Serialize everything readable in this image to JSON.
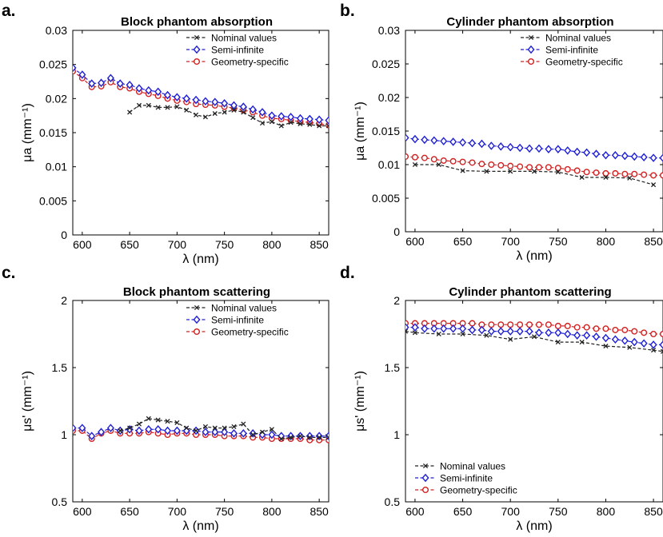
{
  "legend_labels": {
    "nominal": "Nominal values",
    "semi": "Semi-infinite",
    "geometry": "Geometry-specific"
  },
  "colors": {
    "nominal": "#222222",
    "semi": "#1f1fd6",
    "geometry": "#d12121"
  },
  "xlabel": "λ (nm)",
  "chart_data": [
    {
      "id": "a",
      "letter": "a.",
      "type": "line",
      "title": "Block phantom absorption",
      "ylabel": "μa (mm⁻¹)",
      "xlim": [
        590,
        860
      ],
      "ylim": [
        0,
        0.03
      ],
      "xticks": [
        600,
        650,
        700,
        750,
        800,
        850
      ],
      "xtick_labels": [
        "600",
        "650",
        "700",
        "750",
        "800",
        "850"
      ],
      "yticks": [
        0,
        0.005,
        0.01,
        0.015,
        0.02,
        0.025,
        0.03
      ],
      "ytick_labels": [
        "0",
        "0.005",
        "0.01",
        "0.015",
        "0.02",
        "0.025",
        "0.03"
      ],
      "legend_position": "top-right",
      "series": [
        {
          "key": "nominal",
          "name": "Nominal values",
          "marker": "x",
          "x": [
            650,
            660,
            670,
            680,
            690,
            700,
            710,
            720,
            730,
            740,
            750,
            760,
            770,
            780,
            790,
            800,
            810,
            820,
            830,
            840,
            850,
            860
          ],
          "y": [
            0.018,
            0.019,
            0.019,
            0.0187,
            0.0187,
            0.0188,
            0.0183,
            0.0176,
            0.0173,
            0.0178,
            0.018,
            0.0183,
            0.018,
            0.0172,
            0.0164,
            0.0166,
            0.016,
            0.0165,
            0.0163,
            0.0162,
            0.016,
            0.016
          ]
        },
        {
          "key": "semi",
          "name": "Semi-infinite",
          "marker": "diamond",
          "x": [
            590,
            600,
            610,
            620,
            630,
            640,
            650,
            660,
            670,
            680,
            690,
            700,
            710,
            720,
            730,
            740,
            750,
            760,
            770,
            780,
            790,
            800,
            810,
            820,
            830,
            840,
            850,
            860
          ],
          "y": [
            0.0245,
            0.0235,
            0.0222,
            0.0223,
            0.023,
            0.0222,
            0.022,
            0.0215,
            0.0212,
            0.021,
            0.0205,
            0.0202,
            0.02,
            0.0198,
            0.0196,
            0.0195,
            0.0193,
            0.019,
            0.0188,
            0.0184,
            0.018,
            0.0175,
            0.0174,
            0.0173,
            0.0171,
            0.017,
            0.0169,
            0.0168
          ]
        },
        {
          "key": "geometry",
          "name": "Geometry-specific",
          "marker": "circle",
          "x": [
            590,
            600,
            610,
            620,
            630,
            640,
            650,
            660,
            670,
            680,
            690,
            700,
            710,
            720,
            730,
            740,
            750,
            760,
            770,
            780,
            790,
            800,
            810,
            820,
            830,
            840,
            850,
            860
          ],
          "y": [
            0.024,
            0.023,
            0.0217,
            0.0218,
            0.0224,
            0.0217,
            0.0215,
            0.021,
            0.0207,
            0.0204,
            0.02,
            0.0197,
            0.0195,
            0.0192,
            0.0191,
            0.019,
            0.0188,
            0.0186,
            0.0183,
            0.018,
            0.0175,
            0.0171,
            0.017,
            0.0168,
            0.0166,
            0.0165,
            0.0163,
            0.0161
          ]
        }
      ]
    },
    {
      "id": "b",
      "letter": "b.",
      "type": "line",
      "title": "Cylinder phantom absorption",
      "ylabel": "μa (mm⁻¹)",
      "xlim": [
        590,
        860
      ],
      "ylim": [
        0,
        0.03
      ],
      "xticks": [
        600,
        650,
        700,
        750,
        800,
        850
      ],
      "xtick_labels": [
        "600",
        "650",
        "700",
        "750",
        "800",
        "850"
      ],
      "yticks": [
        0,
        0.005,
        0.01,
        0.015,
        0.02,
        0.025,
        0.03
      ],
      "ytick_labels": [
        "0",
        "0.005",
        "0.01",
        "0.015",
        "0.02",
        "0.025",
        "0.03"
      ],
      "legend_position": "top-right",
      "series": [
        {
          "key": "nominal",
          "name": "Nominal values",
          "marker": "x",
          "x": [
            600,
            625,
            650,
            675,
            700,
            725,
            750,
            775,
            800,
            825,
            850
          ],
          "y": [
            0.01,
            0.01,
            0.0091,
            0.009,
            0.009,
            0.009,
            0.0089,
            0.0081,
            0.0081,
            0.008,
            0.007
          ]
        },
        {
          "key": "semi",
          "name": "Semi-infinite",
          "marker": "diamond",
          "x": [
            590,
            600,
            610,
            620,
            630,
            640,
            650,
            660,
            670,
            680,
            690,
            700,
            710,
            720,
            730,
            740,
            750,
            760,
            770,
            780,
            790,
            800,
            810,
            820,
            830,
            840,
            850,
            860
          ],
          "y": [
            0.014,
            0.0138,
            0.0137,
            0.0136,
            0.0135,
            0.0134,
            0.0133,
            0.0132,
            0.0131,
            0.0128,
            0.0127,
            0.0126,
            0.0125,
            0.0124,
            0.0124,
            0.0123,
            0.0123,
            0.0121,
            0.0119,
            0.0118,
            0.0116,
            0.0114,
            0.0114,
            0.0113,
            0.0112,
            0.0111,
            0.011,
            0.011
          ]
        },
        {
          "key": "geometry",
          "name": "Geometry-specific",
          "marker": "circle",
          "x": [
            590,
            600,
            610,
            620,
            630,
            640,
            650,
            660,
            670,
            680,
            690,
            700,
            710,
            720,
            730,
            740,
            750,
            760,
            770,
            780,
            790,
            800,
            810,
            820,
            830,
            840,
            850,
            860
          ],
          "y": [
            0.0112,
            0.0111,
            0.011,
            0.0108,
            0.0106,
            0.0105,
            0.0104,
            0.0103,
            0.0101,
            0.01,
            0.0099,
            0.0098,
            0.0097,
            0.0096,
            0.0096,
            0.0096,
            0.0095,
            0.0093,
            0.0091,
            0.0089,
            0.0088,
            0.0087,
            0.0087,
            0.0086,
            0.0086,
            0.0085,
            0.0084,
            0.0084
          ]
        }
      ]
    },
    {
      "id": "c",
      "letter": "c.",
      "type": "line",
      "title": "Block phantom scattering",
      "ylabel": "μs' (mm⁻¹)",
      "xlim": [
        590,
        860
      ],
      "ylim": [
        0.5,
        2
      ],
      "xticks": [
        600,
        650,
        700,
        750,
        800,
        850
      ],
      "xtick_labels": [
        "600",
        "650",
        "700",
        "750",
        "800",
        "850"
      ],
      "yticks": [
        0.5,
        1,
        1.5,
        2
      ],
      "ytick_labels": [
        "0.5",
        "1",
        "1.5",
        "2"
      ],
      "legend_position": "top-right",
      "series": [
        {
          "key": "nominal",
          "name": "Nominal values",
          "marker": "x",
          "x": [
            640,
            650,
            660,
            670,
            680,
            690,
            700,
            710,
            720,
            730,
            740,
            750,
            760,
            770,
            780,
            790,
            800,
            810,
            820,
            830,
            840,
            850,
            860
          ],
          "y": [
            1.03,
            1.05,
            1.08,
            1.12,
            1.11,
            1.1,
            1.09,
            1.05,
            1.03,
            1.06,
            1.05,
            1.05,
            1.06,
            1.08,
            1.0,
            1.02,
            1.04,
            0.97,
            0.98,
            0.99,
            0.98,
            0.98,
            0.98
          ]
        },
        {
          "key": "semi",
          "name": "Semi-infinite",
          "marker": "diamond",
          "x": [
            590,
            600,
            610,
            620,
            630,
            640,
            650,
            660,
            670,
            680,
            690,
            700,
            710,
            720,
            730,
            740,
            750,
            760,
            770,
            780,
            790,
            800,
            810,
            820,
            830,
            840,
            850,
            860
          ],
          "y": [
            1.05,
            1.05,
            0.99,
            1.02,
            1.05,
            1.03,
            1.04,
            1.03,
            1.04,
            1.04,
            1.03,
            1.03,
            1.03,
            1.03,
            1.02,
            1.02,
            1.02,
            1.01,
            1.01,
            1.01,
            1.0,
            1.0,
            0.99,
            0.99,
            0.99,
            0.99,
            0.99,
            0.99
          ]
        },
        {
          "key": "geometry",
          "name": "Geometry-specific",
          "marker": "circle",
          "x": [
            590,
            600,
            610,
            620,
            630,
            640,
            650,
            660,
            670,
            680,
            690,
            700,
            710,
            720,
            730,
            740,
            750,
            760,
            770,
            780,
            790,
            800,
            810,
            820,
            830,
            840,
            850,
            860
          ],
          "y": [
            1.03,
            1.03,
            0.97,
            1.01,
            1.03,
            1.01,
            1.01,
            1.01,
            1.02,
            1.01,
            1.0,
            1.01,
            1.01,
            1.0,
            1.0,
            1.0,
            0.99,
            0.99,
            0.99,
            0.98,
            0.98,
            0.97,
            0.97,
            0.97,
            0.97,
            0.96,
            0.96,
            0.96
          ]
        }
      ]
    },
    {
      "id": "d",
      "letter": "d.",
      "type": "line",
      "title": "Cylinder phantom scattering",
      "ylabel": "μs' (mm⁻¹)",
      "xlim": [
        590,
        860
      ],
      "ylim": [
        0.5,
        2
      ],
      "xticks": [
        600,
        650,
        700,
        750,
        800,
        850
      ],
      "xtick_labels": [
        "600",
        "650",
        "700",
        "750",
        "800",
        "850"
      ],
      "yticks": [
        0.5,
        1,
        1.5,
        2
      ],
      "ytick_labels": [
        "0.5",
        "1",
        "1.5",
        "2"
      ],
      "legend_position": "bottom-left",
      "series": [
        {
          "key": "nominal",
          "name": "Nominal values",
          "marker": "x",
          "x": [
            590,
            600,
            625,
            650,
            675,
            700,
            725,
            750,
            775,
            800,
            825,
            850,
            860
          ],
          "y": [
            1.77,
            1.76,
            1.75,
            1.75,
            1.74,
            1.71,
            1.73,
            1.69,
            1.69,
            1.66,
            1.65,
            1.63,
            1.62
          ]
        },
        {
          "key": "semi",
          "name": "Semi-infinite",
          "marker": "diamond",
          "x": [
            590,
            600,
            610,
            620,
            630,
            640,
            650,
            660,
            670,
            680,
            690,
            700,
            710,
            720,
            730,
            740,
            750,
            760,
            770,
            780,
            790,
            800,
            810,
            820,
            830,
            840,
            850,
            860
          ],
          "y": [
            1.8,
            1.8,
            1.79,
            1.79,
            1.79,
            1.79,
            1.79,
            1.78,
            1.78,
            1.77,
            1.77,
            1.77,
            1.77,
            1.77,
            1.76,
            1.76,
            1.76,
            1.75,
            1.74,
            1.74,
            1.73,
            1.72,
            1.71,
            1.7,
            1.69,
            1.68,
            1.67,
            1.67
          ]
        },
        {
          "key": "geometry",
          "name": "Geometry-specific",
          "marker": "circle",
          "x": [
            590,
            600,
            610,
            620,
            630,
            640,
            650,
            660,
            670,
            680,
            690,
            700,
            710,
            720,
            730,
            740,
            750,
            760,
            770,
            780,
            790,
            800,
            810,
            820,
            830,
            840,
            850,
            860
          ],
          "y": [
            1.83,
            1.83,
            1.83,
            1.83,
            1.83,
            1.83,
            1.83,
            1.83,
            1.82,
            1.82,
            1.82,
            1.82,
            1.82,
            1.82,
            1.82,
            1.82,
            1.81,
            1.81,
            1.8,
            1.8,
            1.79,
            1.79,
            1.78,
            1.78,
            1.77,
            1.76,
            1.75,
            1.75
          ]
        }
      ]
    }
  ]
}
